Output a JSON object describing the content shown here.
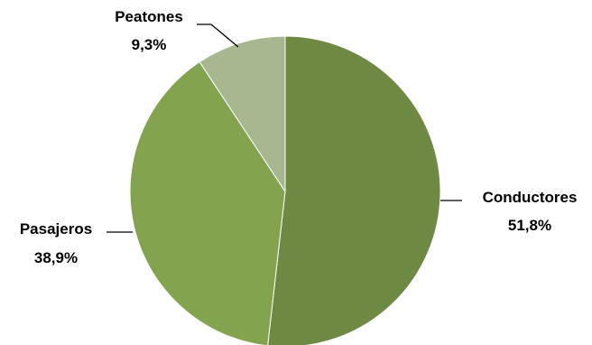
{
  "chart_data": {
    "type": "pie",
    "title": "",
    "slices": [
      {
        "name": "Conductores",
        "value": 51.8,
        "label": "51,8%",
        "color": "#6e8a42"
      },
      {
        "name": "Pasajeros",
        "value": 38.9,
        "label": "38,9%",
        "color": "#84a34e"
      },
      {
        "name": "Peatones",
        "value": 9.3,
        "label": "9,3%",
        "color": "#a7b890"
      }
    ],
    "start_angle_deg": 0,
    "direction": "clockwise",
    "legend": "none",
    "label_style": "outside-with-leader-lines"
  }
}
